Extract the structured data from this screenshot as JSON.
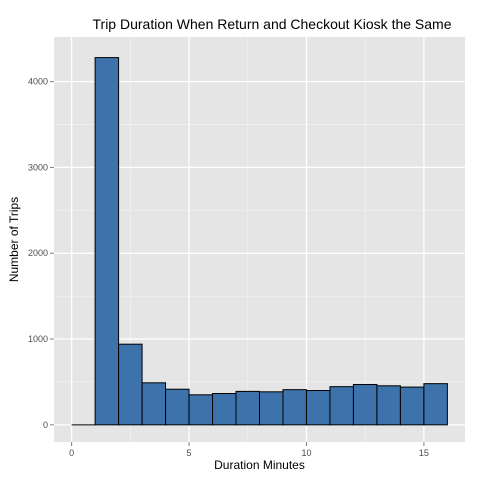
{
  "chart_data": {
    "type": "bar",
    "title": "Trip Duration When Return and Checkout Kiosk the Same",
    "xlabel": "Duration Minutes",
    "ylabel": "Number of Trips",
    "xlim": [
      -0.75,
      16.75
    ],
    "ylim": [
      -200,
      4520
    ],
    "x_ticks": [
      0,
      5,
      10,
      15
    ],
    "y_ticks": [
      0,
      1000,
      2000,
      3000,
      4000
    ],
    "grid": true,
    "legend": "none",
    "bins": [
      {
        "start": 0,
        "end": 1,
        "value": 0
      },
      {
        "start": 1,
        "end": 2,
        "value": 4280
      },
      {
        "start": 2,
        "end": 3,
        "value": 940
      },
      {
        "start": 3,
        "end": 4,
        "value": 490
      },
      {
        "start": 4,
        "end": 5,
        "value": 415
      },
      {
        "start": 5,
        "end": 6,
        "value": 350
      },
      {
        "start": 6,
        "end": 7,
        "value": 365
      },
      {
        "start": 7,
        "end": 8,
        "value": 390
      },
      {
        "start": 8,
        "end": 9,
        "value": 385
      },
      {
        "start": 9,
        "end": 10,
        "value": 410
      },
      {
        "start": 10,
        "end": 11,
        "value": 400
      },
      {
        "start": 11,
        "end": 12,
        "value": 445
      },
      {
        "start": 12,
        "end": 13,
        "value": 470
      },
      {
        "start": 13,
        "end": 14,
        "value": 455
      },
      {
        "start": 14,
        "end": 15,
        "value": 440
      },
      {
        "start": 15,
        "end": 16,
        "value": 480
      }
    ],
    "colors": {
      "bar_fill": "#3d72aa",
      "bar_stroke": "#000000",
      "panel_bg": "#e5e5e5",
      "grid_major": "#ffffff",
      "grid_minor": "#f2f2f2",
      "tick_text": "#4d4d4d",
      "tick_mark": "#7f7f7f"
    }
  }
}
